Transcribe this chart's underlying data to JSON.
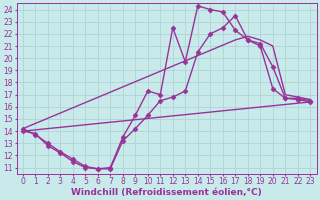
{
  "background_color": "#c8eaea",
  "grid_color": "#b0d4d4",
  "line_color": "#993399",
  "marker_style": "D",
  "marker_size": 2.5,
  "line_width": 1.0,
  "xlabel": "Windchill (Refroidissement éolien,°C)",
  "xlabel_fontsize": 6.5,
  "tick_fontsize": 5.5,
  "xlim": [
    -0.5,
    23.5
  ],
  "ylim": [
    10.5,
    24.5
  ],
  "xticks": [
    0,
    1,
    2,
    3,
    4,
    5,
    6,
    7,
    8,
    9,
    10,
    11,
    12,
    13,
    14,
    15,
    16,
    17,
    18,
    19,
    20,
    21,
    22,
    23
  ],
  "yticks": [
    11,
    12,
    13,
    14,
    15,
    16,
    17,
    18,
    19,
    20,
    21,
    22,
    23,
    24
  ],
  "series": [
    {
      "x": [
        0,
        1,
        2,
        3,
        4,
        5,
        6,
        7,
        8,
        9,
        10,
        11,
        12,
        13,
        14,
        15,
        16,
        17,
        18,
        19,
        20,
        21,
        22,
        23
      ],
      "y": [
        14.2,
        13.7,
        13.0,
        12.3,
        11.7,
        11.1,
        10.9,
        11.0,
        13.5,
        15.3,
        17.3,
        17.0,
        22.5,
        19.7,
        24.3,
        24.0,
        23.8,
        22.3,
        21.5,
        21.2,
        19.3,
        16.7,
        16.7,
        16.5
      ],
      "marker": true
    },
    {
      "x": [
        0,
        1,
        2,
        3,
        4,
        5,
        6,
        7,
        8,
        9,
        10,
        11,
        12,
        13,
        14,
        15,
        16,
        17,
        18,
        19,
        20,
        21,
        22,
        23
      ],
      "y": [
        14.0,
        13.8,
        12.8,
        12.2,
        11.5,
        11.0,
        10.9,
        10.9,
        13.2,
        14.2,
        15.3,
        16.5,
        16.8,
        17.3,
        20.5,
        22.0,
        22.5,
        23.5,
        21.5,
        21.0,
        17.5,
        16.7,
        16.6,
        16.4
      ],
      "marker": true
    },
    {
      "x": [
        0,
        17,
        18,
        19,
        20,
        21,
        22,
        23
      ],
      "y": [
        14.2,
        21.5,
        21.8,
        21.5,
        21.0,
        17.0,
        16.8,
        16.6
      ],
      "marker": false
    },
    {
      "x": [
        0,
        23
      ],
      "y": [
        14.0,
        16.4
      ],
      "marker": false
    }
  ]
}
